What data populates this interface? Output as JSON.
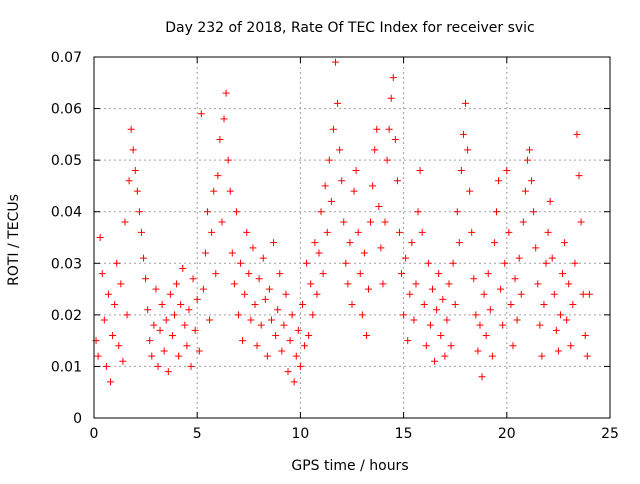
{
  "chart_data": {
    "type": "scatter",
    "title": "Day 232 of 2018, Rate Of TEC Index for receiver svic",
    "xlabel": "GPS time / hours",
    "ylabel": "ROTI / TECUs",
    "xlim": [
      0,
      25
    ],
    "ylim": [
      0,
      0.07
    ],
    "x_ticks": [
      0,
      5,
      10,
      15,
      20,
      25
    ],
    "y_ticks": [
      0,
      0.01,
      0.02,
      0.03,
      0.04,
      0.05,
      0.06,
      0.07
    ],
    "x_tick_labels": [
      "0",
      "5",
      "10",
      "15",
      "20",
      "25"
    ],
    "y_tick_labels": [
      "0",
      "0.01",
      "0.02",
      "0.03",
      "0.04",
      "0.05",
      "0.06",
      "0.07"
    ],
    "grid": true,
    "marker": "plus",
    "series_color": "#ff0000",
    "series": [
      {
        "name": "ROTI",
        "points": [
          [
            0.1,
            0.015
          ],
          [
            0.2,
            0.012
          ],
          [
            0.3,
            0.035
          ],
          [
            0.4,
            0.028
          ],
          [
            0.5,
            0.019
          ],
          [
            0.6,
            0.01
          ],
          [
            0.7,
            0.024
          ],
          [
            0.8,
            0.007
          ],
          [
            0.9,
            0.016
          ],
          [
            1.0,
            0.022
          ],
          [
            1.1,
            0.03
          ],
          [
            1.2,
            0.014
          ],
          [
            1.3,
            0.026
          ],
          [
            1.4,
            0.011
          ],
          [
            1.5,
            0.038
          ],
          [
            1.6,
            0.02
          ],
          [
            1.7,
            0.046
          ],
          [
            1.8,
            0.056
          ],
          [
            1.9,
            0.052
          ],
          [
            2.0,
            0.048
          ],
          [
            2.1,
            0.044
          ],
          [
            2.2,
            0.04
          ],
          [
            2.3,
            0.036
          ],
          [
            2.4,
            0.031
          ],
          [
            2.5,
            0.027
          ],
          [
            2.6,
            0.021
          ],
          [
            2.7,
            0.015
          ],
          [
            2.8,
            0.012
          ],
          [
            2.9,
            0.018
          ],
          [
            3.0,
            0.025
          ],
          [
            3.1,
            0.01
          ],
          [
            3.2,
            0.017
          ],
          [
            3.3,
            0.022
          ],
          [
            3.4,
            0.013
          ],
          [
            3.5,
            0.019
          ],
          [
            3.6,
            0.009
          ],
          [
            3.7,
            0.024
          ],
          [
            3.8,
            0.016
          ],
          [
            3.9,
            0.02
          ],
          [
            4.0,
            0.026
          ],
          [
            4.1,
            0.012
          ],
          [
            4.2,
            0.022
          ],
          [
            4.3,
            0.029
          ],
          [
            4.4,
            0.018
          ],
          [
            4.5,
            0.014
          ],
          [
            4.6,
            0.021
          ],
          [
            4.7,
            0.01
          ],
          [
            4.8,
            0.027
          ],
          [
            4.9,
            0.017
          ],
          [
            5.0,
            0.023
          ],
          [
            5.1,
            0.013
          ],
          [
            5.2,
            0.059
          ],
          [
            5.3,
            0.025
          ],
          [
            5.4,
            0.032
          ],
          [
            5.5,
            0.04
          ],
          [
            5.6,
            0.019
          ],
          [
            5.7,
            0.036
          ],
          [
            5.8,
            0.044
          ],
          [
            5.9,
            0.028
          ],
          [
            6.0,
            0.047
          ],
          [
            6.1,
            0.054
          ],
          [
            6.2,
            0.038
          ],
          [
            6.3,
            0.058
          ],
          [
            6.4,
            0.063
          ],
          [
            6.5,
            0.05
          ],
          [
            6.6,
            0.044
          ],
          [
            6.7,
            0.032
          ],
          [
            6.8,
            0.026
          ],
          [
            6.9,
            0.04
          ],
          [
            7.0,
            0.02
          ],
          [
            7.1,
            0.03
          ],
          [
            7.2,
            0.015
          ],
          [
            7.3,
            0.024
          ],
          [
            7.4,
            0.036
          ],
          [
            7.5,
            0.028
          ],
          [
            7.6,
            0.019
          ],
          [
            7.7,
            0.033
          ],
          [
            7.8,
            0.022
          ],
          [
            7.9,
            0.014
          ],
          [
            8.0,
            0.027
          ],
          [
            8.1,
            0.018
          ],
          [
            8.2,
            0.031
          ],
          [
            8.3,
            0.023
          ],
          [
            8.4,
            0.012
          ],
          [
            8.5,
            0.025
          ],
          [
            8.6,
            0.019
          ],
          [
            8.7,
            0.034
          ],
          [
            8.8,
            0.016
          ],
          [
            8.9,
            0.021
          ],
          [
            9.0,
            0.028
          ],
          [
            9.1,
            0.013
          ],
          [
            9.2,
            0.018
          ],
          [
            9.3,
            0.024
          ],
          [
            9.4,
            0.009
          ],
          [
            9.5,
            0.015
          ],
          [
            9.6,
            0.02
          ],
          [
            9.7,
            0.007
          ],
          [
            9.8,
            0.012
          ],
          [
            9.9,
            0.017
          ],
          [
            10.0,
            0.01
          ],
          [
            10.1,
            0.022
          ],
          [
            10.2,
            0.014
          ],
          [
            10.3,
            0.03
          ],
          [
            10.4,
            0.016
          ],
          [
            10.5,
            0.026
          ],
          [
            10.6,
            0.02
          ],
          [
            10.7,
            0.034
          ],
          [
            10.8,
            0.024
          ],
          [
            10.9,
            0.032
          ],
          [
            11.0,
            0.04
          ],
          [
            11.1,
            0.028
          ],
          [
            11.2,
            0.045
          ],
          [
            11.3,
            0.036
          ],
          [
            11.4,
            0.05
          ],
          [
            11.5,
            0.042
          ],
          [
            11.6,
            0.056
          ],
          [
            11.7,
            0.069
          ],
          [
            11.8,
            0.061
          ],
          [
            11.9,
            0.052
          ],
          [
            12.0,
            0.046
          ],
          [
            12.1,
            0.038
          ],
          [
            12.2,
            0.03
          ],
          [
            12.3,
            0.026
          ],
          [
            12.4,
            0.034
          ],
          [
            12.5,
            0.022
          ],
          [
            12.6,
            0.044
          ],
          [
            12.7,
            0.048
          ],
          [
            12.8,
            0.036
          ],
          [
            12.9,
            0.028
          ],
          [
            13.0,
            0.02
          ],
          [
            13.1,
            0.032
          ],
          [
            13.2,
            0.016
          ],
          [
            13.3,
            0.025
          ],
          [
            13.4,
            0.038
          ],
          [
            13.5,
            0.045
          ],
          [
            13.6,
            0.052
          ],
          [
            13.7,
            0.056
          ],
          [
            13.8,
            0.041
          ],
          [
            13.9,
            0.033
          ],
          [
            14.0,
            0.026
          ],
          [
            14.1,
            0.038
          ],
          [
            14.2,
            0.05
          ],
          [
            14.3,
            0.056
          ],
          [
            14.4,
            0.062
          ],
          [
            14.5,
            0.066
          ],
          [
            14.6,
            0.054
          ],
          [
            14.7,
            0.046
          ],
          [
            14.8,
            0.036
          ],
          [
            14.9,
            0.028
          ],
          [
            15.0,
            0.02
          ],
          [
            15.1,
            0.031
          ],
          [
            15.2,
            0.015
          ],
          [
            15.3,
            0.024
          ],
          [
            15.4,
            0.034
          ],
          [
            15.5,
            0.019
          ],
          [
            15.6,
            0.026
          ],
          [
            15.7,
            0.04
          ],
          [
            15.8,
            0.048
          ],
          [
            15.9,
            0.036
          ],
          [
            16.0,
            0.022
          ],
          [
            16.1,
            0.014
          ],
          [
            16.2,
            0.03
          ],
          [
            16.3,
            0.018
          ],
          [
            16.4,
            0.025
          ],
          [
            16.5,
            0.011
          ],
          [
            16.6,
            0.021
          ],
          [
            16.7,
            0.028
          ],
          [
            16.8,
            0.016
          ],
          [
            16.9,
            0.023
          ],
          [
            17.0,
            0.012
          ],
          [
            17.1,
            0.019
          ],
          [
            17.2,
            0.026
          ],
          [
            17.3,
            0.014
          ],
          [
            17.4,
            0.03
          ],
          [
            17.5,
            0.022
          ],
          [
            17.6,
            0.04
          ],
          [
            17.7,
            0.034
          ],
          [
            17.8,
            0.048
          ],
          [
            17.9,
            0.055
          ],
          [
            18.0,
            0.061
          ],
          [
            18.1,
            0.052
          ],
          [
            18.2,
            0.044
          ],
          [
            18.3,
            0.036
          ],
          [
            18.4,
            0.027
          ],
          [
            18.5,
            0.02
          ],
          [
            18.6,
            0.013
          ],
          [
            18.7,
            0.018
          ],
          [
            18.8,
            0.008
          ],
          [
            18.9,
            0.024
          ],
          [
            19.0,
            0.016
          ],
          [
            19.1,
            0.028
          ],
          [
            19.2,
            0.021
          ],
          [
            19.3,
            0.012
          ],
          [
            19.4,
            0.034
          ],
          [
            19.5,
            0.04
          ],
          [
            19.6,
            0.046
          ],
          [
            19.7,
            0.025
          ],
          [
            19.8,
            0.018
          ],
          [
            19.9,
            0.03
          ],
          [
            20.0,
            0.048
          ],
          [
            20.1,
            0.036
          ],
          [
            20.2,
            0.022
          ],
          [
            20.3,
            0.014
          ],
          [
            20.4,
            0.027
          ],
          [
            20.5,
            0.019
          ],
          [
            20.6,
            0.031
          ],
          [
            20.7,
            0.024
          ],
          [
            20.8,
            0.038
          ],
          [
            20.9,
            0.044
          ],
          [
            21.0,
            0.05
          ],
          [
            21.1,
            0.052
          ],
          [
            21.2,
            0.046
          ],
          [
            21.3,
            0.04
          ],
          [
            21.4,
            0.033
          ],
          [
            21.5,
            0.026
          ],
          [
            21.6,
            0.018
          ],
          [
            21.7,
            0.012
          ],
          [
            21.8,
            0.022
          ],
          [
            21.9,
            0.03
          ],
          [
            22.0,
            0.036
          ],
          [
            22.1,
            0.042
          ],
          [
            22.2,
            0.031
          ],
          [
            22.3,
            0.024
          ],
          [
            22.4,
            0.017
          ],
          [
            22.5,
            0.013
          ],
          [
            22.6,
            0.02
          ],
          [
            22.7,
            0.028
          ],
          [
            22.8,
            0.034
          ],
          [
            22.9,
            0.019
          ],
          [
            23.0,
            0.026
          ],
          [
            23.1,
            0.014
          ],
          [
            23.2,
            0.022
          ],
          [
            23.3,
            0.03
          ],
          [
            23.4,
            0.055
          ],
          [
            23.5,
            0.047
          ],
          [
            23.6,
            0.038
          ],
          [
            23.7,
            0.024
          ],
          [
            23.8,
            0.016
          ],
          [
            23.9,
            0.012
          ],
          [
            24.0,
            0.024
          ]
        ]
      }
    ]
  }
}
